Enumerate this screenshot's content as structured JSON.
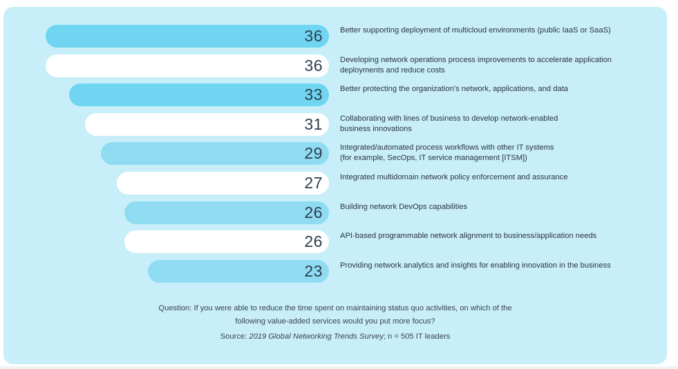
{
  "colors": {
    "panel": "#c7eef9",
    "bar_blue": "#6fd5f1",
    "bar_white": "#ffffff",
    "text": "#2b3440"
  },
  "chart_data": {
    "type": "bar",
    "orientation": "horizontal",
    "categories": [
      "Better supporting deployment of multicloud environments (public IaaS or SaaS)",
      "Developing network operations process improvements to accelerate application\ndeployments and reduce costs",
      "Better protecting the organization’s network, applications, and data",
      "Collaborating with lines of business to develop network-enabled\nbusiness innovations",
      "Integrated/automated process workflows with other IT systems\n(for example, SecOps, IT service management [ITSM])",
      "Integrated multidomain network policy enforcement and assurance",
      "Building network DevOps capabilities",
      "API-based programmable network alignment to business/application needs",
      "Providing network analytics and insights for enabling innovation in the business"
    ],
    "values": [
      36,
      36,
      33,
      31,
      29,
      27,
      26,
      26,
      23
    ],
    "value_labels": [
      "36",
      "36",
      "33",
      "31",
      "29",
      "27",
      "26",
      "26",
      "23"
    ],
    "bar_colors": [
      "#6fd5f1",
      "#ffffff",
      "#6fd5f1",
      "#ffffff",
      "#8fdcf2",
      "#ffffff",
      "#8fdcf2",
      "#ffffff",
      "#8fdcf2"
    ],
    "xlim": [
      0,
      45
    ]
  },
  "footer": {
    "question": "Question: If you were able to reduce the time spent on maintaining status quo activities, on which of the\nfollowing value-added services would you put more focus?",
    "source_prefix": "Source: ",
    "source_title": "2019 Global Networking Trends Survey",
    "source_suffix": "; n = 505  IT leaders"
  }
}
